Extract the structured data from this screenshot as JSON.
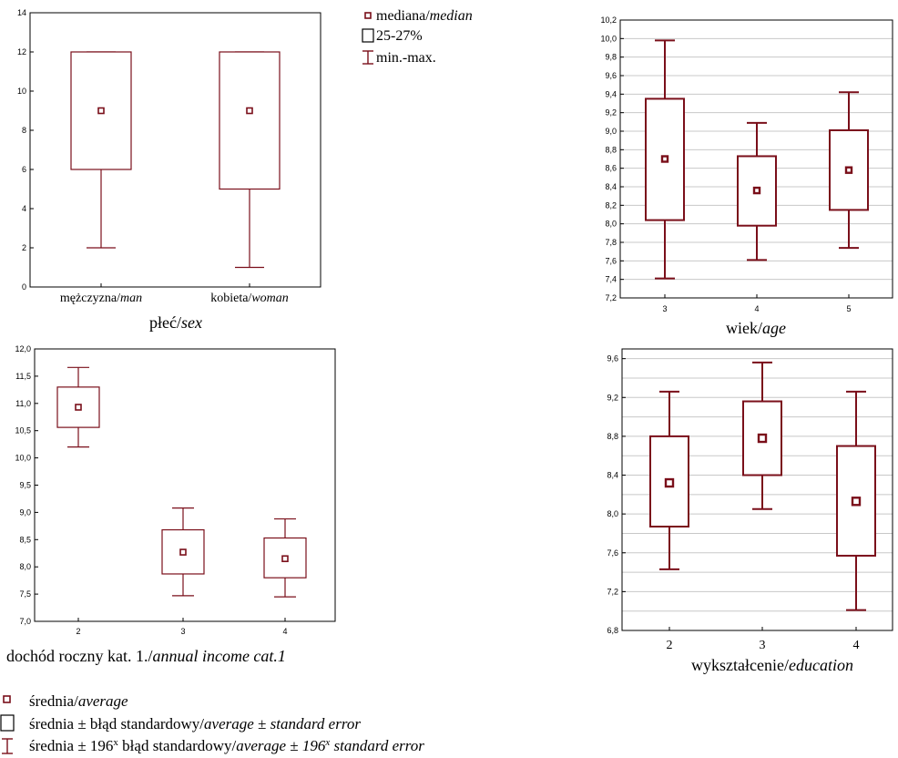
{
  "colors": {
    "box": "#7a0f1a",
    "grid": "#c8c8c8",
    "frame": "#000000"
  },
  "legend_top": [
    {
      "symbol": "median-marker",
      "text": "mediana/",
      "text_italic": "median"
    },
    {
      "symbol": "box",
      "text": "25-27%",
      "text_italic": ""
    },
    {
      "symbol": "whisker",
      "text": "min.-max.",
      "text_italic": ""
    }
  ],
  "legend_bottom": [
    {
      "symbol": "mean-marker",
      "parts": [
        [
          "średnia/",
          ""
        ],
        [
          "average",
          "i"
        ]
      ]
    },
    {
      "symbol": "box",
      "parts": [
        [
          "średnia ± błąd standardowy/",
          ""
        ],
        [
          "average ± standard error",
          "i"
        ]
      ]
    },
    {
      "symbol": "whisker",
      "parts": [
        [
          "średnia ± 196",
          ""
        ],
        [
          "x",
          "s"
        ],
        [
          " błąd standardowy/",
          ""
        ],
        [
          "average ± 196",
          "i"
        ],
        [
          "x",
          "si"
        ],
        [
          " standard error",
          "i"
        ]
      ]
    }
  ],
  "chart_data": [
    {
      "id": "sex",
      "type": "box",
      "ylim": [
        0,
        14
      ],
      "yticks": [
        "0",
        "2",
        "4",
        "6",
        "8",
        "10",
        "12",
        "14"
      ],
      "grid": false,
      "categories": [
        [
          "mężczyzna/",
          "man"
        ],
        [
          "kobieta/",
          "woman"
        ]
      ],
      "boxes": [
        {
          "min": 2,
          "q1": 6,
          "center": 9,
          "q3": 12,
          "max": 12
        },
        {
          "min": 1,
          "q1": 5,
          "center": 9,
          "q3": 12,
          "max": 12
        }
      ],
      "xlabel": [
        "płeć/",
        "sex"
      ]
    },
    {
      "id": "age",
      "type": "box",
      "ylim": [
        7.2,
        10.2
      ],
      "yticks": [
        "7,2",
        "7,4",
        "7,6",
        "7,8",
        "8,0",
        "8,2",
        "8,4",
        "8,6",
        "8,8",
        "9,0",
        "9,2",
        "9,4",
        "9,6",
        "9,8",
        "10,0",
        "10,2"
      ],
      "grid": true,
      "categories": [
        [
          "3",
          ""
        ],
        [
          "4",
          ""
        ],
        [
          "5",
          ""
        ]
      ],
      "boxes": [
        {
          "min": 7.41,
          "q1": 8.04,
          "center": 8.7,
          "q3": 9.35,
          "max": 9.98
        },
        {
          "min": 7.61,
          "q1": 7.98,
          "center": 8.36,
          "q3": 8.73,
          "max": 9.09
        },
        {
          "min": 7.74,
          "q1": 8.15,
          "center": 8.58,
          "q3": 9.01,
          "max": 9.42
        }
      ],
      "xlabel": [
        "wiek/",
        "age"
      ]
    },
    {
      "id": "income",
      "type": "box",
      "ylim": [
        7.0,
        12.0
      ],
      "yticks": [
        "7,0",
        "7,5",
        "8,0",
        "8,5",
        "9,0",
        "9,5",
        "10,0",
        "10,5",
        "11,0",
        "11,5",
        "12,0"
      ],
      "grid": false,
      "categories": [
        [
          "2",
          ""
        ],
        [
          "3",
          ""
        ],
        [
          "4",
          ""
        ]
      ],
      "boxes": [
        {
          "min": 10.2,
          "q1": 10.56,
          "center": 10.93,
          "q3": 11.3,
          "max": 11.66
        },
        {
          "min": 7.47,
          "q1": 7.87,
          "center": 8.27,
          "q3": 8.68,
          "max": 9.08
        },
        {
          "min": 7.45,
          "q1": 7.8,
          "center": 8.15,
          "q3": 8.53,
          "max": 8.88
        }
      ],
      "xlabel": [
        "dochód roczny kat. 1./",
        "annual income cat.1"
      ]
    },
    {
      "id": "education",
      "type": "box",
      "ylim": [
        6.8,
        9.7
      ],
      "yticks": [
        "6,8",
        "7,2",
        "7,6",
        "8,0",
        "8,4",
        "8,8",
        "9,2",
        "9,6"
      ],
      "ytick_values": [
        6.8,
        7.2,
        7.6,
        8.0,
        8.4,
        8.8,
        9.2,
        9.6
      ],
      "grid": true,
      "categories": [
        [
          "2",
          ""
        ],
        [
          "3",
          ""
        ],
        [
          "4",
          ""
        ]
      ],
      "boxes": [
        {
          "min": 7.43,
          "q1": 7.87,
          "center": 8.32,
          "q3": 8.8,
          "max": 9.26
        },
        {
          "min": 8.05,
          "q1": 8.4,
          "center": 8.78,
          "q3": 9.16,
          "max": 9.56
        },
        {
          "min": 7.01,
          "q1": 7.57,
          "center": 8.13,
          "q3": 8.7,
          "max": 9.26
        }
      ],
      "xlabel": [
        "wykształcenie/",
        "education"
      ]
    }
  ]
}
